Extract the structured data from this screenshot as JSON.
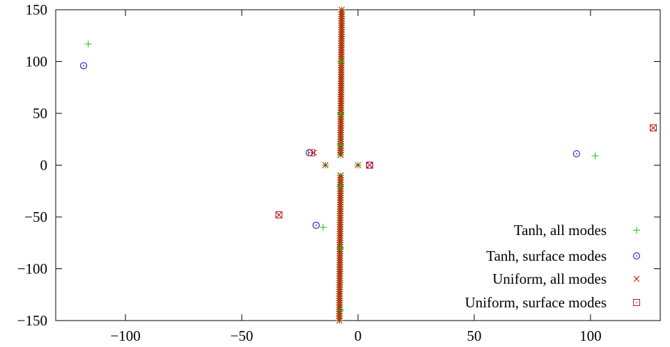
{
  "chart_data": {
    "type": "scatter",
    "title": "",
    "xlabel": "",
    "ylabel": "",
    "xlim": [
      -130,
      130
    ],
    "ylim": [
      -150,
      150
    ],
    "grid": false,
    "legend_position": "bottom-right",
    "x_ticks": [
      {
        "value": -100,
        "label": "−100"
      },
      {
        "value": -50,
        "label": "−50"
      },
      {
        "value": 0,
        "label": "0"
      },
      {
        "value": 50,
        "label": "50"
      },
      {
        "value": 100,
        "label": "100"
      }
    ],
    "y_ticks": [
      {
        "value": 150,
        "label": "150"
      },
      {
        "value": 100,
        "label": "100"
      },
      {
        "value": 50,
        "label": "50"
      },
      {
        "value": 0,
        "label": "0"
      },
      {
        "value": -50,
        "label": "−50"
      },
      {
        "value": -100,
        "label": "−100"
      },
      {
        "value": -150,
        "label": "−150"
      }
    ],
    "series": [
      {
        "name": "Tanh, all modes",
        "marker": "plus",
        "color": "#00cc00",
        "x": [
          -116,
          102,
          -15,
          0,
          -14,
          -7.5,
          -7.5,
          -7.5,
          -7.5,
          -7.5,
          -7.5,
          -7.5,
          -7.5
        ],
        "y": [
          117,
          9,
          -60,
          0,
          0,
          10,
          20,
          50,
          100,
          -10,
          -20,
          -80,
          -140
        ],
        "continuous_bands": [
          {
            "x_top": -7.0,
            "x_bottom": -7.5,
            "y_from": 150,
            "y_to": 10
          },
          {
            "x_top": -7.5,
            "x_bottom": -8.0,
            "y_from": -10,
            "y_to": -150
          }
        ]
      },
      {
        "name": "Tanh, surface modes",
        "marker": "circle",
        "color": "#0000cc",
        "x": [
          -118,
          94,
          -21,
          -18,
          5
        ],
        "y": [
          96,
          11,
          12,
          -58,
          0
        ]
      },
      {
        "name": "Uniform, all modes",
        "marker": "cross",
        "color": "#dd0000",
        "x": [
          -14,
          0,
          5,
          -19,
          -34,
          127,
          -7.5,
          -7.5
        ],
        "y": [
          0,
          0,
          0,
          12,
          -48,
          36,
          10,
          -10
        ],
        "continuous_bands": [
          {
            "x_top": -7.0,
            "x_bottom": -7.5,
            "y_from": 150,
            "y_to": 10
          },
          {
            "x_top": -7.5,
            "x_bottom": -8.0,
            "y_from": -10,
            "y_to": -150
          }
        ]
      },
      {
        "name": "Uniform, surface modes",
        "marker": "square",
        "color": "#aa2222",
        "x": [
          127,
          -34,
          5,
          -20
        ],
        "y": [
          36,
          -48,
          0,
          12
        ]
      }
    ]
  }
}
